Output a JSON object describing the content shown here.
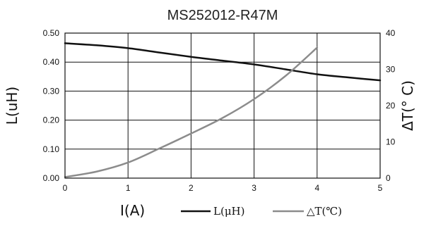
{
  "chart_data": {
    "type": "line",
    "title": "MS252012-R47M",
    "xlabel": "I(A)",
    "ylabel": "L(uH)",
    "y2label": "ΔT(° C)",
    "xlim": [
      0,
      5
    ],
    "ylim": [
      0,
      0.5
    ],
    "y2lim": [
      0,
      40
    ],
    "x_ticks": [
      "0",
      "1",
      "2",
      "3",
      "4",
      "5"
    ],
    "y_ticks": [
      "0.00",
      "0.10",
      "0.20",
      "0.30",
      "0.40",
      "0.50"
    ],
    "y2_ticks": [
      "0",
      "10",
      "20",
      "30",
      "40"
    ],
    "grid": true,
    "legend_position": "bottom",
    "series": [
      {
        "name": "L(μH)",
        "axis": "left",
        "color": "#111111",
        "x": [
          0,
          0.5,
          1,
          1.5,
          2,
          2.5,
          3,
          3.5,
          4,
          4.5,
          5
        ],
        "y": [
          0.465,
          0.458,
          0.448,
          0.433,
          0.418,
          0.405,
          0.392,
          0.375,
          0.358,
          0.347,
          0.337
        ]
      },
      {
        "name": "△T(℃)",
        "axis": "right",
        "color": "#8c8c8c",
        "x": [
          0,
          0.5,
          1,
          1.5,
          2,
          2.5,
          3,
          3.5,
          4
        ],
        "y": [
          0.3,
          1.8,
          4.3,
          8.2,
          12.3,
          16.6,
          21.8,
          28.2,
          36
        ]
      }
    ]
  }
}
